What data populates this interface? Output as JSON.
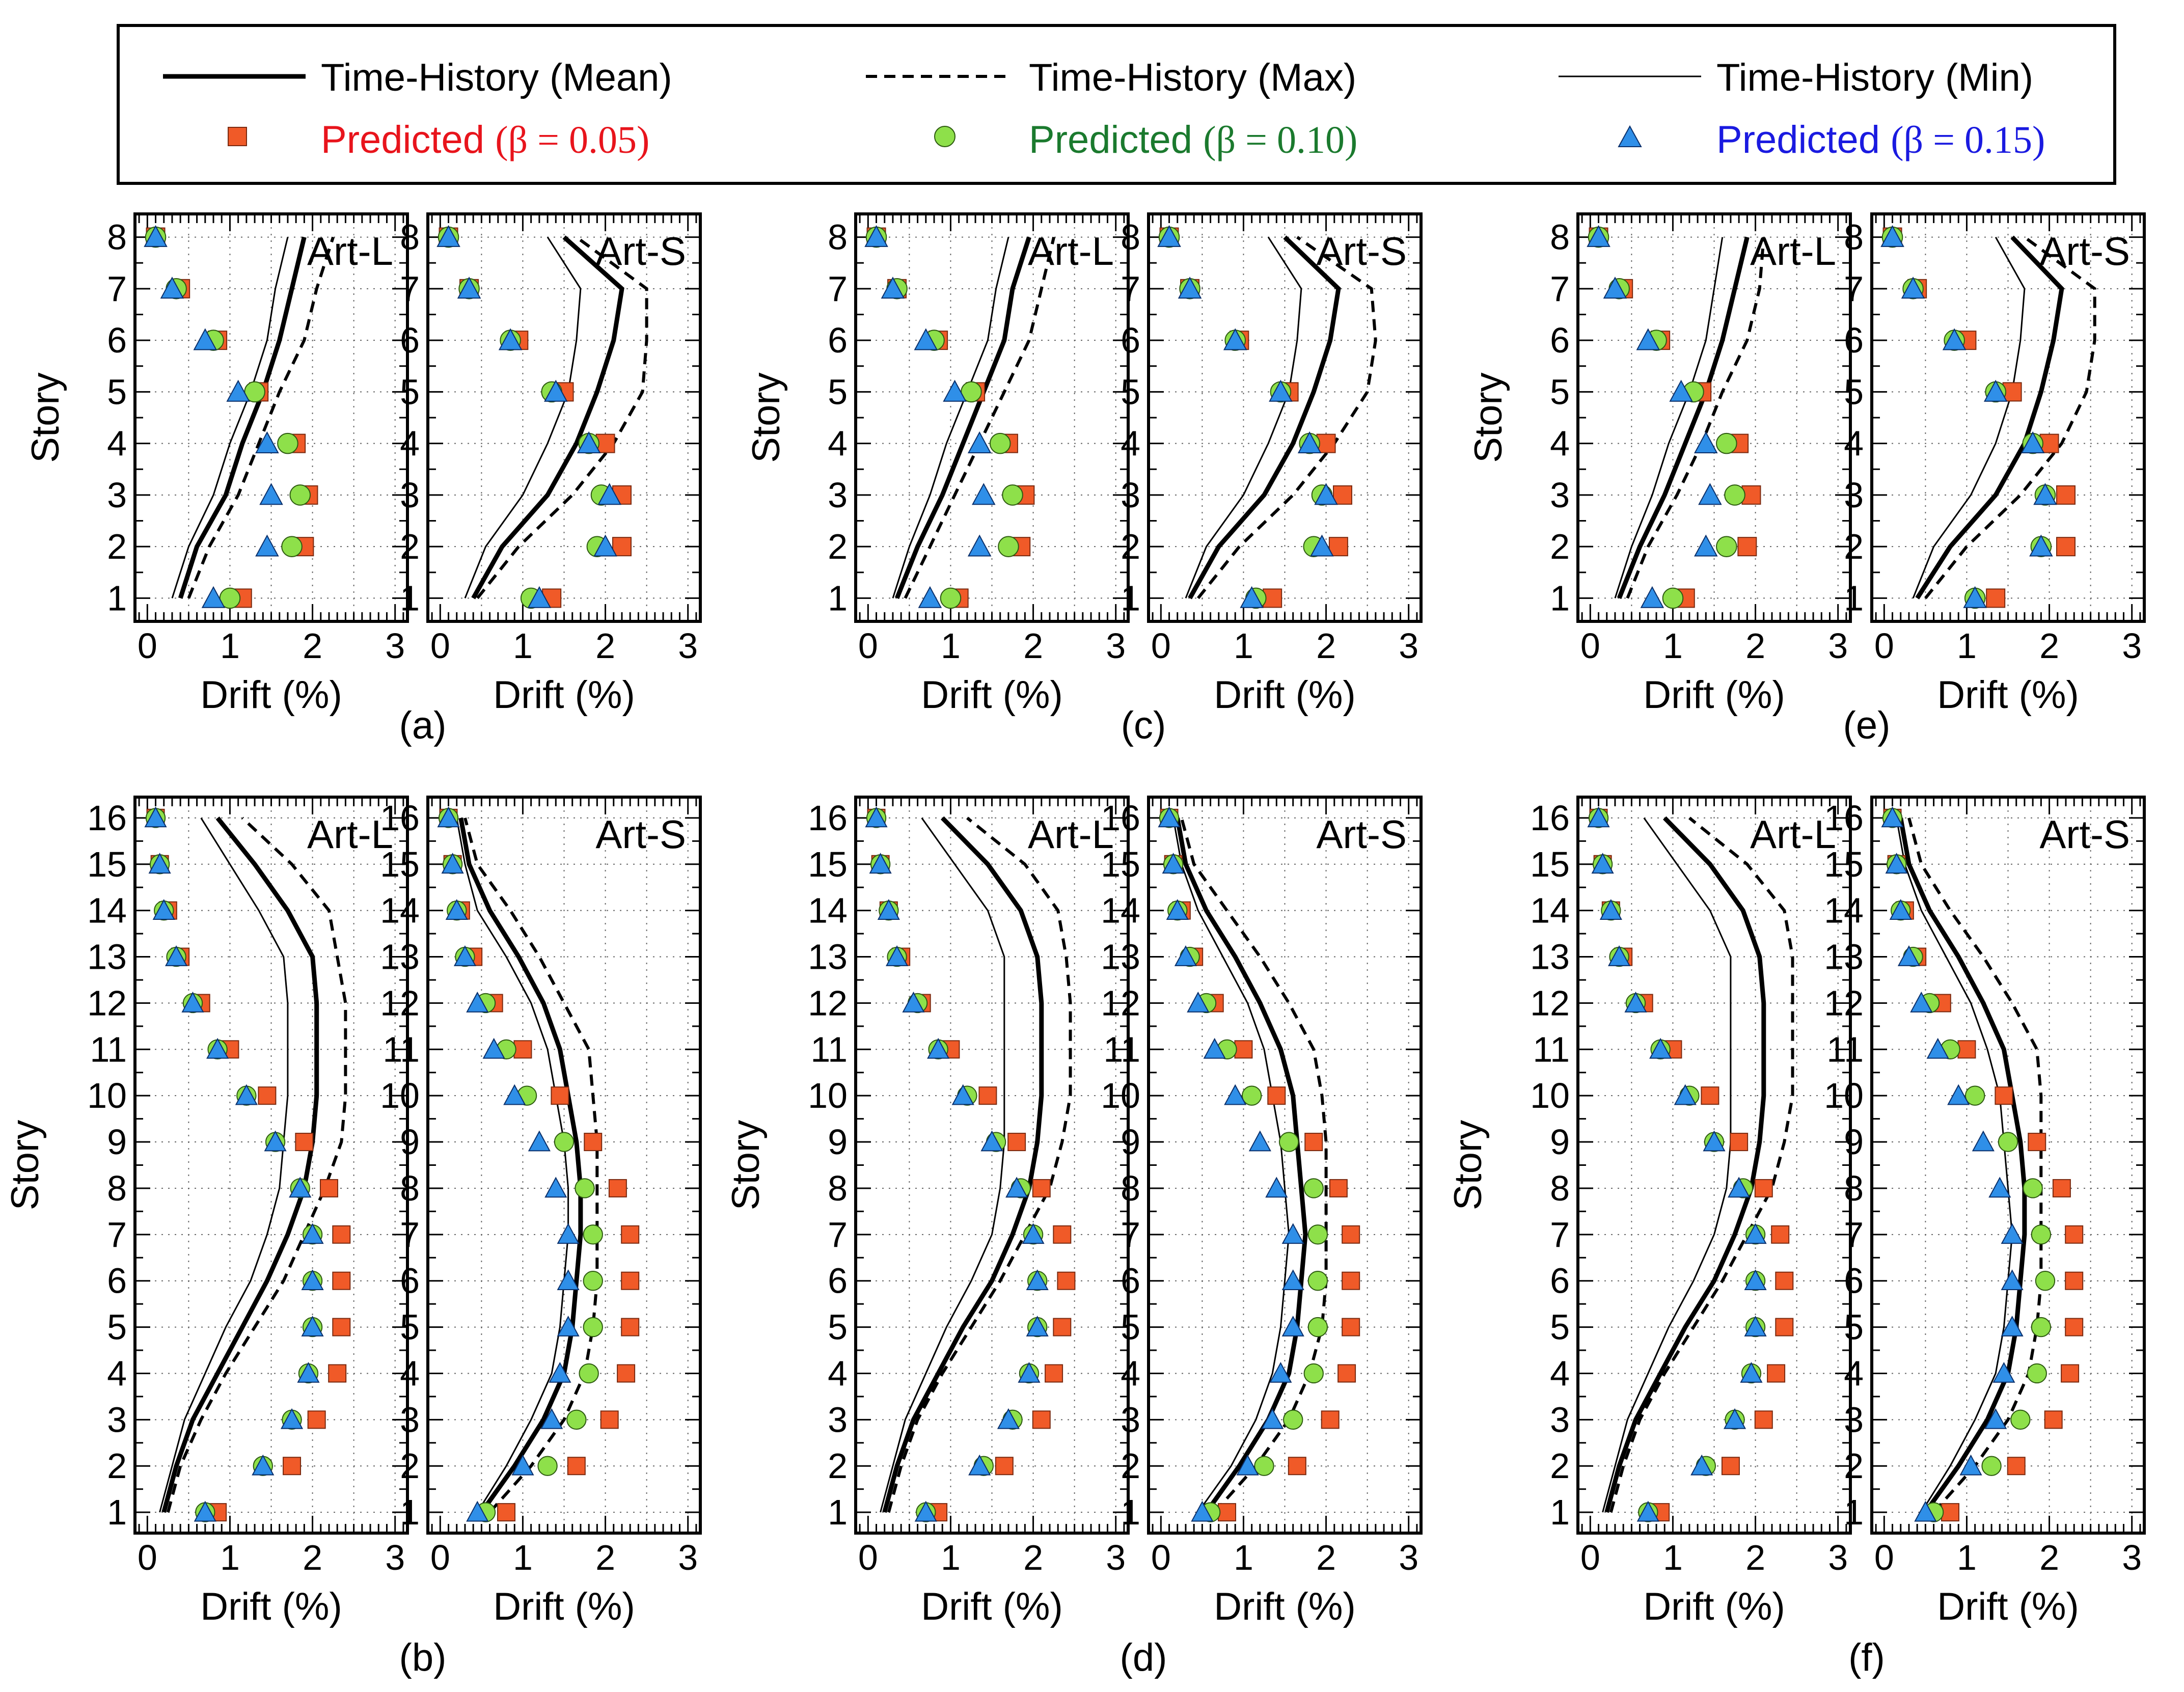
{
  "colors": {
    "predicted_005_fill": "#f05a28",
    "predicted_005_text": "#e8141c",
    "predicted_010_fill": "#8ee04a",
    "predicted_010_text": "#1b7a2e",
    "predicted_015_fill": "#2f8fe8",
    "predicted_015_text": "#1a1ae0",
    "lines": "#000000"
  },
  "legend": {
    "th_mean": "Time-History (Mean)",
    "th_max": "Time-History (Max)",
    "th_min": "Time-History (Min)",
    "pred_label": "Predicted ",
    "beta_005": "(β = 0.05)",
    "beta_010": "(β = 0.10)",
    "beta_015": "(β = 0.15)"
  },
  "chart_data": [
    {
      "type": "line",
      "panel": "a",
      "record": "Art-L",
      "stories": 8,
      "xlabel": "Drift (%)",
      "ylabel": "Story",
      "xlim": [
        0,
        3
      ],
      "xticks": [
        0,
        1,
        2,
        3
      ],
      "th_mean": [
        0.4,
        0.6,
        0.95,
        1.15,
        1.4,
        1.6,
        1.75,
        1.9
      ],
      "th_max": [
        0.5,
        0.75,
        1.1,
        1.35,
        1.6,
        1.9,
        2.05,
        2.25
      ],
      "th_min": [
        0.3,
        0.5,
        0.8,
        1.0,
        1.25,
        1.45,
        1.55,
        1.7
      ],
      "pred_005": [
        1.15,
        1.9,
        1.95,
        1.8,
        1.35,
        0.85,
        0.4,
        0.1
      ],
      "pred_010": [
        1.0,
        1.75,
        1.85,
        1.7,
        1.3,
        0.8,
        0.35,
        0.1
      ],
      "pred_015": [
        0.8,
        1.45,
        1.5,
        1.45,
        1.1,
        0.7,
        0.3,
        0.1
      ]
    },
    {
      "type": "line",
      "panel": "a",
      "record": "Art-S",
      "stories": 8,
      "xlabel": "Drift (%)",
      "ylabel": "Story",
      "xlim": [
        0,
        3
      ],
      "xticks": [
        0,
        1,
        2,
        3
      ],
      "th_mean": [
        0.4,
        0.75,
        1.3,
        1.65,
        1.9,
        2.1,
        2.2,
        1.5
      ],
      "th_max": [
        0.45,
        0.95,
        1.6,
        2.1,
        2.45,
        2.5,
        2.5,
        1.65
      ],
      "th_min": [
        0.3,
        0.55,
        1.0,
        1.3,
        1.55,
        1.65,
        1.7,
        1.3
      ],
      "pred_005": [
        1.35,
        2.2,
        2.2,
        2.0,
        1.5,
        0.95,
        0.35,
        0.1
      ],
      "pred_010": [
        1.1,
        1.9,
        1.95,
        1.8,
        1.35,
        0.85,
        0.35,
        0.1
      ],
      "pred_015": [
        1.2,
        2.0,
        2.05,
        1.8,
        1.4,
        0.85,
        0.35,
        0.1
      ]
    },
    {
      "type": "line",
      "panel": "b",
      "record": "Art-L",
      "stories": 16,
      "xlabel": "Drift (%)",
      "ylabel": "Story",
      "xlim": [
        0,
        3
      ],
      "xticks": [
        0,
        1,
        2,
        3
      ],
      "th_mean": [
        0.2,
        0.35,
        0.55,
        0.85,
        1.15,
        1.45,
        1.7,
        1.9,
        2.0,
        2.05,
        2.05,
        2.05,
        2.0,
        1.7,
        1.3,
        0.85
      ],
      "th_max": [
        0.25,
        0.4,
        0.65,
        0.95,
        1.3,
        1.65,
        1.9,
        2.15,
        2.35,
        2.4,
        2.4,
        2.4,
        2.3,
        2.2,
        1.75,
        1.15
      ],
      "th_min": [
        0.15,
        0.3,
        0.45,
        0.7,
        0.95,
        1.25,
        1.45,
        1.6,
        1.65,
        1.7,
        1.7,
        1.7,
        1.65,
        1.35,
        1.0,
        0.65
      ],
      "pred_005": [
        0.85,
        1.75,
        2.05,
        2.3,
        2.35,
        2.35,
        2.35,
        2.2,
        1.9,
        1.45,
        1.0,
        0.65,
        0.4,
        0.25,
        0.15,
        0.1
      ],
      "pred_010": [
        0.7,
        1.4,
        1.75,
        1.95,
        2.0,
        2.0,
        2.0,
        1.85,
        1.55,
        1.2,
        0.85,
        0.55,
        0.35,
        0.2,
        0.15,
        0.1
      ],
      "pred_015": [
        0.7,
        1.4,
        1.75,
        1.95,
        2.0,
        2.0,
        2.0,
        1.85,
        1.55,
        1.2,
        0.85,
        0.55,
        0.35,
        0.2,
        0.15,
        0.1
      ]
    },
    {
      "type": "line",
      "panel": "b",
      "record": "Art-S",
      "stories": 16,
      "xlabel": "Drift (%)",
      "ylabel": "Story",
      "xlim": [
        0,
        3
      ],
      "xticks": [
        0,
        1,
        2,
        3
      ],
      "th_mean": [
        0.5,
        0.9,
        1.25,
        1.5,
        1.6,
        1.65,
        1.7,
        1.7,
        1.65,
        1.55,
        1.45,
        1.25,
        0.95,
        0.6,
        0.35,
        0.25
      ],
      "th_max": [
        0.6,
        1.1,
        1.5,
        1.75,
        1.85,
        1.9,
        1.9,
        1.9,
        1.9,
        1.85,
        1.8,
        1.5,
        1.2,
        0.85,
        0.45,
        0.3
      ],
      "th_min": [
        0.45,
        0.8,
        1.1,
        1.35,
        1.45,
        1.5,
        1.55,
        1.55,
        1.5,
        1.4,
        1.3,
        1.1,
        0.8,
        0.45,
        0.3,
        0.2
      ],
      "pred_005": [
        0.8,
        1.65,
        2.05,
        2.25,
        2.3,
        2.3,
        2.3,
        2.15,
        1.85,
        1.45,
        1.0,
        0.65,
        0.4,
        0.25,
        0.15,
        0.1
      ],
      "pred_010": [
        0.55,
        1.3,
        1.65,
        1.8,
        1.85,
        1.85,
        1.85,
        1.75,
        1.5,
        1.05,
        0.8,
        0.55,
        0.3,
        0.2,
        0.15,
        0.1
      ],
      "pred_015": [
        0.45,
        1.0,
        1.35,
        1.45,
        1.55,
        1.55,
        1.55,
        1.4,
        1.2,
        0.9,
        0.65,
        0.45,
        0.3,
        0.2,
        0.15,
        0.1
      ]
    },
    {
      "type": "line",
      "panel": "c",
      "record": "Art-L",
      "stories": 8,
      "xlabel": "Drift (%)",
      "ylabel": "Story",
      "xlim": [
        0,
        3
      ],
      "xticks": [
        0,
        1,
        2,
        3
      ],
      "th_mean": [
        0.35,
        0.6,
        0.9,
        1.15,
        1.4,
        1.65,
        1.75,
        1.95
      ],
      "th_max": [
        0.45,
        0.75,
        1.05,
        1.35,
        1.65,
        1.95,
        2.1,
        2.25
      ],
      "th_min": [
        0.3,
        0.5,
        0.75,
        0.95,
        1.2,
        1.45,
        1.55,
        1.7
      ],
      "pred_005": [
        1.1,
        1.85,
        1.9,
        1.7,
        1.3,
        0.85,
        0.35,
        0.1
      ],
      "pred_010": [
        1.0,
        1.7,
        1.75,
        1.6,
        1.25,
        0.8,
        0.35,
        0.1
      ],
      "pred_015": [
        0.75,
        1.35,
        1.4,
        1.35,
        1.05,
        0.7,
        0.3,
        0.1
      ]
    },
    {
      "type": "line",
      "panel": "c",
      "record": "Art-S",
      "stories": 8,
      "xlabel": "Drift (%)",
      "ylabel": "Story",
      "xlim": [
        0,
        3
      ],
      "xticks": [
        0,
        1,
        2,
        3
      ],
      "th_mean": [
        0.35,
        0.7,
        1.25,
        1.6,
        1.85,
        2.05,
        2.15,
        1.5
      ],
      "th_max": [
        0.45,
        0.95,
        1.6,
        2.1,
        2.5,
        2.6,
        2.55,
        1.65
      ],
      "th_min": [
        0.3,
        0.55,
        1.0,
        1.3,
        1.55,
        1.65,
        1.7,
        1.3
      ],
      "pred_005": [
        1.35,
        2.15,
        2.2,
        2.0,
        1.55,
        0.95,
        0.35,
        0.1
      ],
      "pred_010": [
        1.15,
        1.85,
        1.95,
        1.8,
        1.45,
        0.9,
        0.35,
        0.1
      ],
      "pred_015": [
        1.1,
        1.95,
        2.0,
        1.8,
        1.45,
        0.9,
        0.35,
        0.1
      ]
    },
    {
      "type": "line",
      "panel": "d",
      "record": "Art-L",
      "stories": 16,
      "xlabel": "Drift (%)",
      "ylabel": "Story",
      "xlim": [
        0,
        3
      ],
      "xticks": [
        0,
        1,
        2,
        3
      ],
      "th_mean": [
        0.2,
        0.35,
        0.55,
        0.85,
        1.15,
        1.5,
        1.75,
        1.95,
        2.05,
        2.1,
        2.1,
        2.1,
        2.05,
        1.85,
        1.45,
        0.9
      ],
      "th_max": [
        0.25,
        0.4,
        0.6,
        0.9,
        1.25,
        1.6,
        1.9,
        2.2,
        2.35,
        2.45,
        2.45,
        2.45,
        2.4,
        2.3,
        1.9,
        1.2
      ],
      "th_min": [
        0.15,
        0.3,
        0.45,
        0.7,
        0.95,
        1.25,
        1.5,
        1.6,
        1.65,
        1.65,
        1.65,
        1.65,
        1.65,
        1.45,
        1.05,
        0.65
      ],
      "pred_005": [
        0.85,
        1.65,
        2.1,
        2.25,
        2.35,
        2.4,
        2.35,
        2.1,
        1.8,
        1.45,
        1.0,
        0.65,
        0.4,
        0.25,
        0.15,
        0.1
      ],
      "pred_010": [
        0.7,
        1.4,
        1.75,
        1.95,
        2.05,
        2.05,
        2.0,
        1.85,
        1.55,
        1.2,
        0.85,
        0.6,
        0.35,
        0.25,
        0.15,
        0.1
      ],
      "pred_015": [
        0.7,
        1.35,
        1.7,
        1.95,
        2.05,
        2.05,
        2.0,
        1.8,
        1.5,
        1.15,
        0.85,
        0.55,
        0.35,
        0.25,
        0.15,
        0.1
      ]
    },
    {
      "type": "line",
      "panel": "d",
      "record": "Art-S",
      "stories": 16,
      "xlabel": "Drift (%)",
      "ylabel": "Story",
      "xlim": [
        0,
        3
      ],
      "xticks": [
        0,
        1,
        2,
        3
      ],
      "th_mean": [
        0.55,
        0.95,
        1.3,
        1.55,
        1.65,
        1.7,
        1.75,
        1.7,
        1.65,
        1.6,
        1.45,
        1.2,
        0.9,
        0.55,
        0.3,
        0.2
      ],
      "th_max": [
        0.65,
        1.15,
        1.55,
        1.8,
        1.95,
        2.0,
        2.0,
        2.0,
        2.0,
        1.95,
        1.85,
        1.55,
        1.2,
        0.8,
        0.4,
        0.25
      ],
      "th_min": [
        0.45,
        0.85,
        1.15,
        1.35,
        1.45,
        1.5,
        1.55,
        1.5,
        1.45,
        1.35,
        1.25,
        1.05,
        0.75,
        0.45,
        0.25,
        0.15
      ],
      "pred_005": [
        0.8,
        1.65,
        2.05,
        2.25,
        2.3,
        2.3,
        2.3,
        2.15,
        1.85,
        1.4,
        1.0,
        0.65,
        0.4,
        0.25,
        0.15,
        0.1
      ],
      "pred_010": [
        0.6,
        1.25,
        1.6,
        1.85,
        1.9,
        1.9,
        1.9,
        1.85,
        1.55,
        1.1,
        0.8,
        0.55,
        0.35,
        0.2,
        0.15,
        0.1
      ],
      "pred_015": [
        0.5,
        1.05,
        1.35,
        1.45,
        1.6,
        1.6,
        1.6,
        1.4,
        1.2,
        0.9,
        0.65,
        0.45,
        0.3,
        0.2,
        0.15,
        0.1
      ]
    },
    {
      "type": "line",
      "panel": "e",
      "record": "Art-L",
      "stories": 8,
      "xlabel": "Drift (%)",
      "ylabel": "Story",
      "xlim": [
        0,
        3
      ],
      "xticks": [
        0,
        1,
        2,
        3
      ],
      "th_mean": [
        0.35,
        0.6,
        0.9,
        1.15,
        1.4,
        1.6,
        1.75,
        1.9
      ],
      "th_max": [
        0.45,
        0.7,
        1.05,
        1.35,
        1.6,
        1.9,
        2.05,
        2.1
      ],
      "th_min": [
        0.3,
        0.5,
        0.75,
        0.95,
        1.2,
        1.4,
        1.5,
        1.6
      ],
      "pred_005": [
        1.15,
        1.9,
        1.95,
        1.8,
        1.35,
        0.85,
        0.4,
        0.1
      ],
      "pred_010": [
        1.0,
        1.65,
        1.75,
        1.65,
        1.25,
        0.8,
        0.35,
        0.1
      ],
      "pred_015": [
        0.75,
        1.4,
        1.45,
        1.4,
        1.1,
        0.7,
        0.3,
        0.1
      ]
    },
    {
      "type": "line",
      "panel": "e",
      "record": "Art-S",
      "stories": 8,
      "xlabel": "Drift (%)",
      "ylabel": "Story",
      "xlim": [
        0,
        3
      ],
      "xticks": [
        0,
        1,
        2,
        3
      ],
      "th_mean": [
        0.4,
        0.8,
        1.35,
        1.7,
        1.9,
        2.05,
        2.15,
        1.55
      ],
      "th_max": [
        0.5,
        1.0,
        1.65,
        2.15,
        2.45,
        2.55,
        2.55,
        1.7
      ],
      "th_min": [
        0.35,
        0.6,
        1.05,
        1.35,
        1.55,
        1.65,
        1.7,
        1.35
      ],
      "pred_005": [
        1.35,
        2.2,
        2.2,
        2.0,
        1.55,
        1.0,
        0.4,
        0.1
      ],
      "pred_010": [
        1.1,
        1.9,
        1.95,
        1.8,
        1.35,
        0.85,
        0.35,
        0.1
      ],
      "pred_015": [
        1.1,
        1.9,
        1.95,
        1.8,
        1.35,
        0.85,
        0.35,
        0.1
      ]
    },
    {
      "type": "line",
      "panel": "f",
      "record": "Art-L",
      "stories": 16,
      "xlabel": "Drift (%)",
      "ylabel": "Story",
      "xlim": [
        0,
        3
      ],
      "xticks": [
        0,
        1,
        2,
        3
      ],
      "th_mean": [
        0.2,
        0.35,
        0.55,
        0.85,
        1.15,
        1.5,
        1.75,
        1.95,
        2.05,
        2.1,
        2.1,
        2.1,
        2.05,
        1.85,
        1.45,
        0.9
      ],
      "th_max": [
        0.25,
        0.4,
        0.6,
        0.9,
        1.25,
        1.6,
        1.9,
        2.2,
        2.35,
        2.45,
        2.45,
        2.45,
        2.45,
        2.35,
        1.9,
        1.2
      ],
      "th_min": [
        0.15,
        0.3,
        0.45,
        0.7,
        0.95,
        1.25,
        1.5,
        1.65,
        1.7,
        1.7,
        1.7,
        1.7,
        1.7,
        1.45,
        1.05,
        0.65
      ],
      "pred_005": [
        0.85,
        1.7,
        2.1,
        2.25,
        2.35,
        2.35,
        2.3,
        2.1,
        1.8,
        1.45,
        1.0,
        0.65,
        0.4,
        0.25,
        0.15,
        0.1
      ],
      "pred_010": [
        0.7,
        1.4,
        1.75,
        1.95,
        2.0,
        2.0,
        2.0,
        1.85,
        1.5,
        1.2,
        0.85,
        0.55,
        0.35,
        0.25,
        0.15,
        0.1
      ],
      "pred_015": [
        0.7,
        1.35,
        1.75,
        1.95,
        2.0,
        2.0,
        2.0,
        1.8,
        1.5,
        1.15,
        0.85,
        0.55,
        0.35,
        0.25,
        0.15,
        0.1
      ]
    },
    {
      "type": "line",
      "panel": "f",
      "record": "Art-S",
      "stories": 16,
      "xlabel": "Drift (%)",
      "ylabel": "Story",
      "xlim": [
        0,
        3
      ],
      "xticks": [
        0,
        1,
        2,
        3
      ],
      "th_mean": [
        0.5,
        0.9,
        1.25,
        1.5,
        1.6,
        1.65,
        1.7,
        1.7,
        1.65,
        1.55,
        1.45,
        1.2,
        0.9,
        0.55,
        0.3,
        0.2
      ],
      "th_max": [
        0.6,
        1.1,
        1.5,
        1.75,
        1.85,
        1.9,
        1.9,
        1.9,
        1.9,
        1.9,
        1.85,
        1.55,
        1.2,
        0.8,
        0.45,
        0.3
      ],
      "th_min": [
        0.45,
        0.8,
        1.1,
        1.35,
        1.45,
        1.5,
        1.55,
        1.5,
        1.45,
        1.4,
        1.25,
        1.05,
        0.75,
        0.45,
        0.25,
        0.15
      ],
      "pred_005": [
        0.8,
        1.6,
        2.05,
        2.25,
        2.3,
        2.3,
        2.3,
        2.15,
        1.85,
        1.45,
        1.0,
        0.7,
        0.4,
        0.25,
        0.15,
        0.1
      ],
      "pred_010": [
        0.6,
        1.3,
        1.65,
        1.85,
        1.9,
        1.95,
        1.9,
        1.8,
        1.5,
        1.1,
        0.8,
        0.55,
        0.35,
        0.2,
        0.15,
        0.1
      ],
      "pred_015": [
        0.5,
        1.05,
        1.35,
        1.45,
        1.55,
        1.55,
        1.55,
        1.4,
        1.2,
        0.9,
        0.65,
        0.45,
        0.3,
        0.2,
        0.15,
        0.1
      ]
    }
  ],
  "captions": [
    "(a)",
    "(b)",
    "(c)",
    "(d)",
    "(e)",
    "(f)"
  ]
}
